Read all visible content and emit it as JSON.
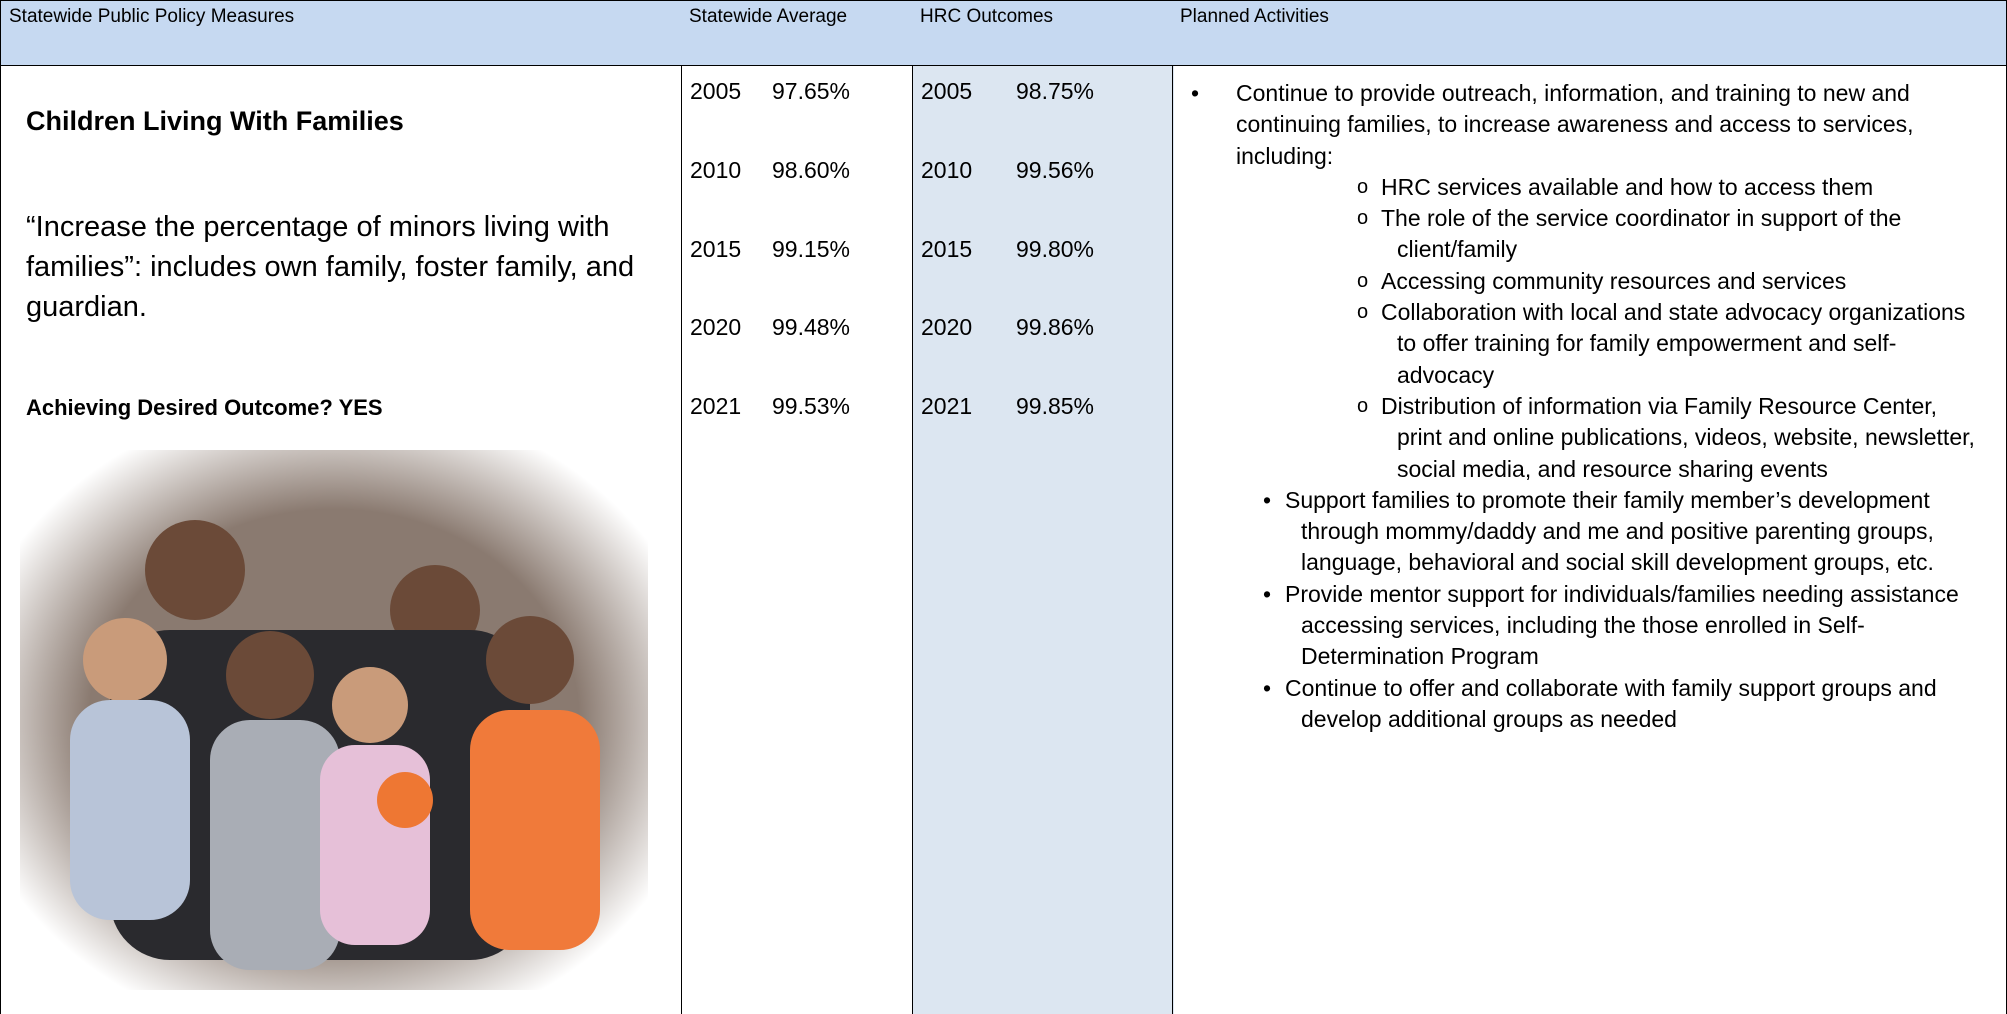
{
  "header": [
    "Statewide Public Policy Measures",
    "Statewide Average",
    "HRC Outcomes",
    "Planned Activities"
  ],
  "measure": {
    "title": "Children Living With Families",
    "description": "“Increase the percentage of minors living with families”: includes own family, foster family, and guardian.",
    "outcome": "Achieving Desired Outcome? YES"
  },
  "statewide": [
    [
      "2005",
      "97.65%"
    ],
    [
      "2010",
      "98.60%"
    ],
    [
      "2015",
      "99.15%"
    ],
    [
      "2020",
      "99.48%"
    ],
    [
      "2021",
      "99.53%"
    ]
  ],
  "hrc": [
    [
      "2005",
      "98.75%"
    ],
    [
      "2010",
      "99.56%"
    ],
    [
      "2015",
      "99.80%"
    ],
    [
      "2020",
      "99.86%"
    ],
    [
      "2021",
      "99.85%"
    ]
  ],
  "activities": [
    {
      "text": "Continue to provide outreach, information, and training to new and continuing families, to increase awareness and access to services, including:",
      "subitems": [
        "HRC services available and how to access them",
        "The role of the service coordinator in support of the client/family",
        "Accessing community resources and services",
        "Collaboration with local and state advocacy organizations to offer training for family empowerment and self-advocacy",
        "Distribution of information via Family Resource Center, print and online publications, videos, website, newsletter, social media, and resource sharing events"
      ]
    },
    {
      "text": "Support families to promote their family member’s development through mommy/daddy and me and positive parenting groups, language, behavioral and social skill development groups, etc.",
      "subitems": []
    },
    {
      "text": "Provide mentor support for individuals/families needing assistance accessing services, including the those enrolled in Self-Determination Program",
      "subitems": []
    },
    {
      "text": "Continue to offer and collaborate with family support groups and develop additional groups as needed",
      "subitems": []
    }
  ]
}
